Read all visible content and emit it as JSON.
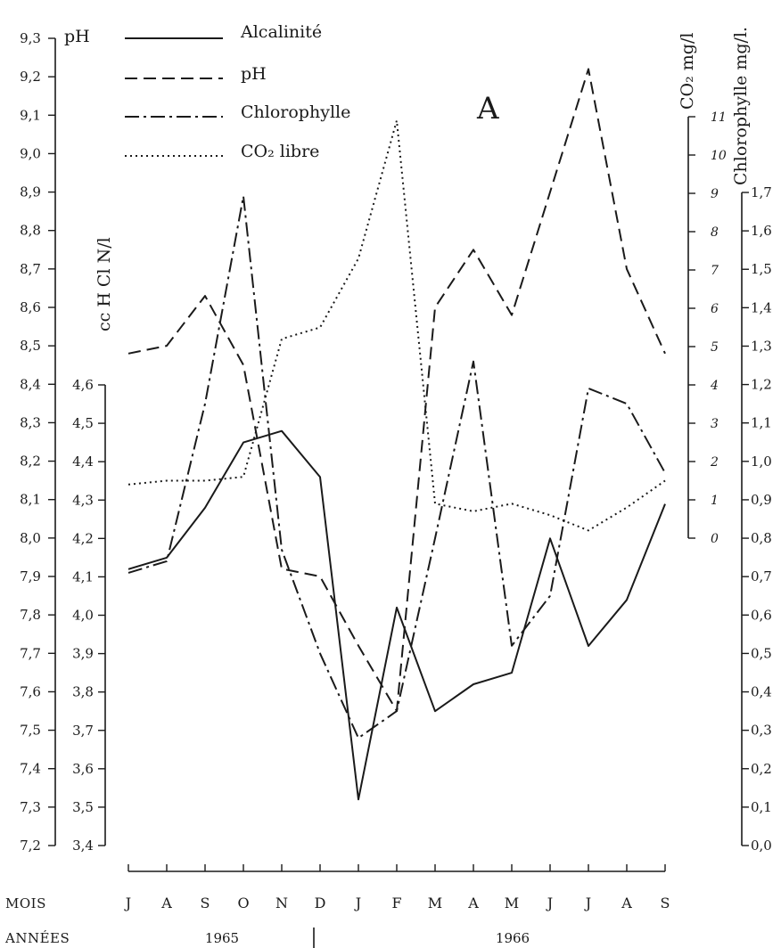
{
  "chart_data": {
    "type": "line",
    "panel": "A",
    "x": [
      "J",
      "A",
      "S",
      "O",
      "N",
      "D",
      "J",
      "F",
      "M",
      "A",
      "M",
      "J",
      "J",
      "A",
      "S"
    ],
    "row_labels": {
      "months": "MOIS",
      "years": "ANNÉES"
    },
    "years": [
      "1965",
      "1966"
    ],
    "series": [
      {
        "name": "Alcalinité",
        "style": "solid",
        "axis": "alcalinite",
        "values": [
          4.12,
          4.15,
          4.28,
          4.45,
          4.48,
          4.36,
          3.52,
          4.02,
          3.75,
          3.82,
          3.85,
          4.2,
          3.92,
          4.04,
          4.29
        ]
      },
      {
        "name": "pH",
        "style": "dashed",
        "axis": "ph",
        "values": [
          8.48,
          8.5,
          8.63,
          8.45,
          7.92,
          7.9,
          7.72,
          7.55,
          8.6,
          8.75,
          8.58,
          8.9,
          9.22,
          8.7,
          8.48
        ]
      },
      {
        "name": "Chlorophylle",
        "style": "dashdot",
        "axis": "chlorophylle",
        "values": [
          0.71,
          0.74,
          1.15,
          1.69,
          0.77,
          0.5,
          0.28,
          0.35,
          0.8,
          1.26,
          0.52,
          0.65,
          1.19,
          1.15,
          0.97
        ]
      },
      {
        "name": "CO₂ libre",
        "style": "dotted",
        "axis": "co2",
        "values": [
          1.4,
          1.5,
          1.5,
          1.6,
          5.2,
          5.5,
          7.3,
          10.9,
          0.9,
          0.7,
          0.9,
          0.6,
          0.2,
          0.8,
          1.5
        ]
      }
    ],
    "axes": {
      "ph": {
        "title": "pH",
        "range": [
          7.2,
          9.3
        ],
        "ticks": [
          "9,3",
          "9,2",
          "9,1",
          "9,0",
          "8,9",
          "8,8",
          "8,7",
          "8,6",
          "8,5",
          "8,4",
          "8,3",
          "8,2",
          "8,1",
          "8,0",
          "7,9",
          "7,8",
          "7,7",
          "7,6",
          "7,5",
          "7,4",
          "7,3",
          "7,2"
        ]
      },
      "alcalinite": {
        "title": "cc H Cl N/l",
        "range": [
          3.4,
          4.6
        ],
        "ticks": [
          "4,6",
          "4,5",
          "4,4",
          "4,3",
          "4,2",
          "4,1",
          "4,0",
          "3,9",
          "3,8",
          "3,7",
          "3,6",
          "3,5",
          "3,4"
        ]
      },
      "co2": {
        "title": "CO₂ mg/l",
        "range": [
          0,
          11
        ],
        "ticks": [
          "11",
          "10",
          "9",
          "8",
          "7",
          "6",
          "5",
          "4",
          "3",
          "2",
          "1",
          "0"
        ]
      },
      "chlorophylle": {
        "title": "Chlorophylle mg/l.",
        "range": [
          0.0,
          1.7
        ],
        "ticks": [
          "1,7",
          "1,6",
          "1,5",
          "1,4",
          "1,3",
          "1,2",
          "1,1",
          "1,0",
          "0,9",
          "0,8",
          "0,7",
          "0,6",
          "0,5",
          "0,4",
          "0,3",
          "0,2",
          "0,1",
          "0,0"
        ]
      }
    },
    "grid": false,
    "legend_position": "top-left"
  }
}
